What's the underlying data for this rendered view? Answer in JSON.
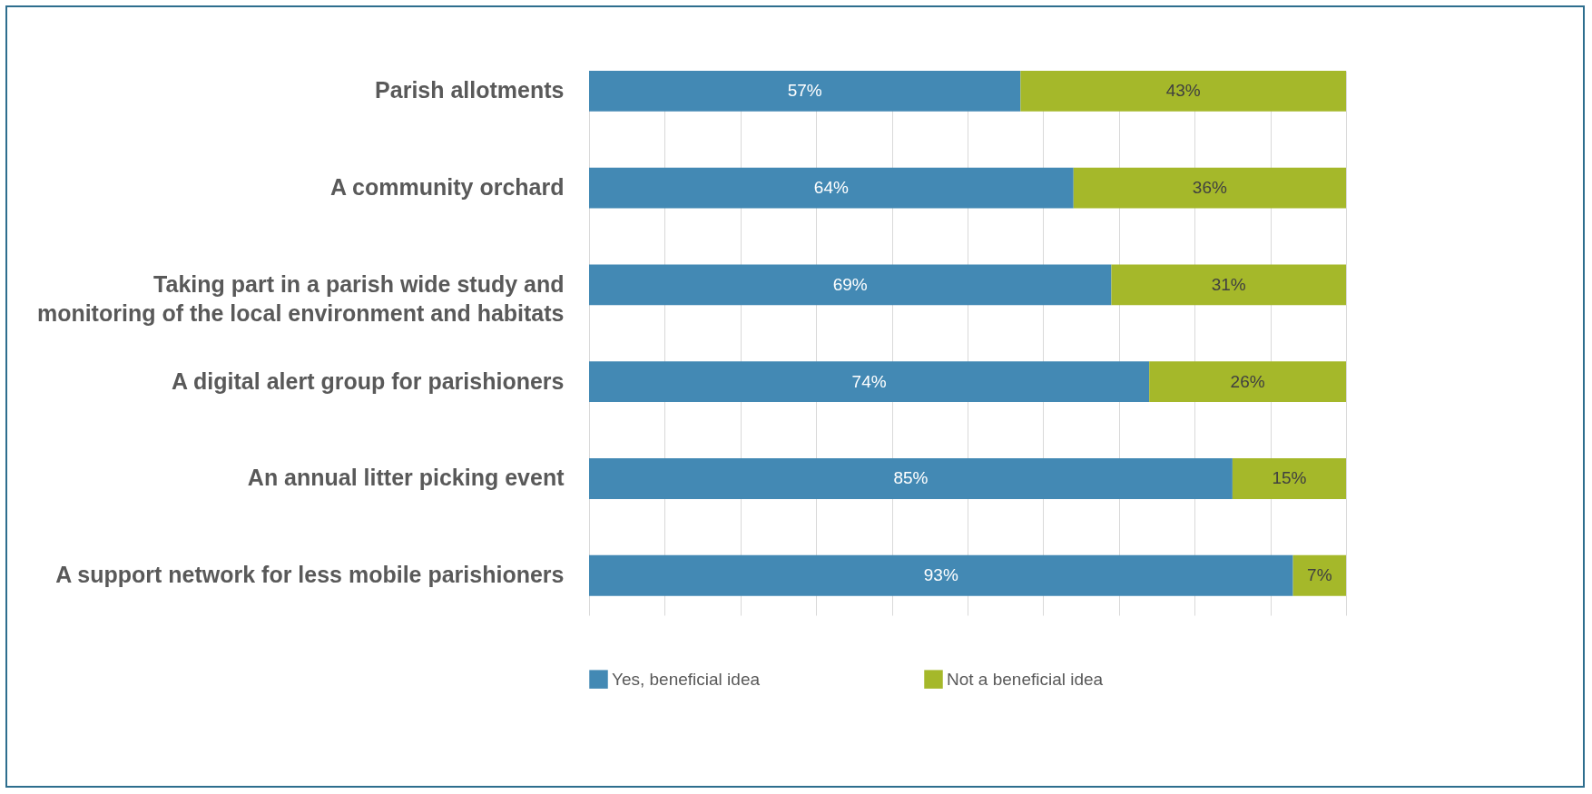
{
  "chart_data": {
    "type": "bar",
    "orientation": "horizontal",
    "stacked": true,
    "categories": [
      "Parish allotments",
      "A community orchard",
      "Taking part in a parish wide study and monitoring of the local environment and habitats",
      "A digital alert group for parishioners",
      "An annual litter picking event",
      "A support network for less mobile parishioners"
    ],
    "series": [
      {
        "name": "Yes, beneficial idea",
        "color": "#4389b4",
        "values": [
          57,
          64,
          69,
          74,
          85,
          93
        ],
        "value_labels": [
          "57%",
          "64%",
          "69%",
          "74%",
          "85%",
          "93%"
        ]
      },
      {
        "name": "Not a beneficial idea",
        "color": "#a5b82a",
        "values": [
          43,
          36,
          31,
          26,
          15,
          7
        ],
        "value_labels": [
          "43%",
          "36%",
          "31%",
          "26%",
          "15%",
          "7%"
        ]
      }
    ],
    "xlim": [
      0,
      100
    ],
    "xticks": [
      {
        "value": 0,
        "label": null
      },
      {
        "value": 10,
        "label": null
      },
      {
        "value": 20,
        "label": null
      },
      {
        "value": 30,
        "label": null
      },
      {
        "value": 40,
        "label": null
      },
      {
        "value": 50,
        "label": null
      },
      {
        "value": 60,
        "label": null
      },
      {
        "value": 70,
        "label": null
      },
      {
        "value": 80,
        "label": null
      },
      {
        "value": 90,
        "label": null
      },
      {
        "value": 100,
        "label": null
      }
    ],
    "grid": "x",
    "legend": "bottom",
    "tick_labels": "y"
  }
}
